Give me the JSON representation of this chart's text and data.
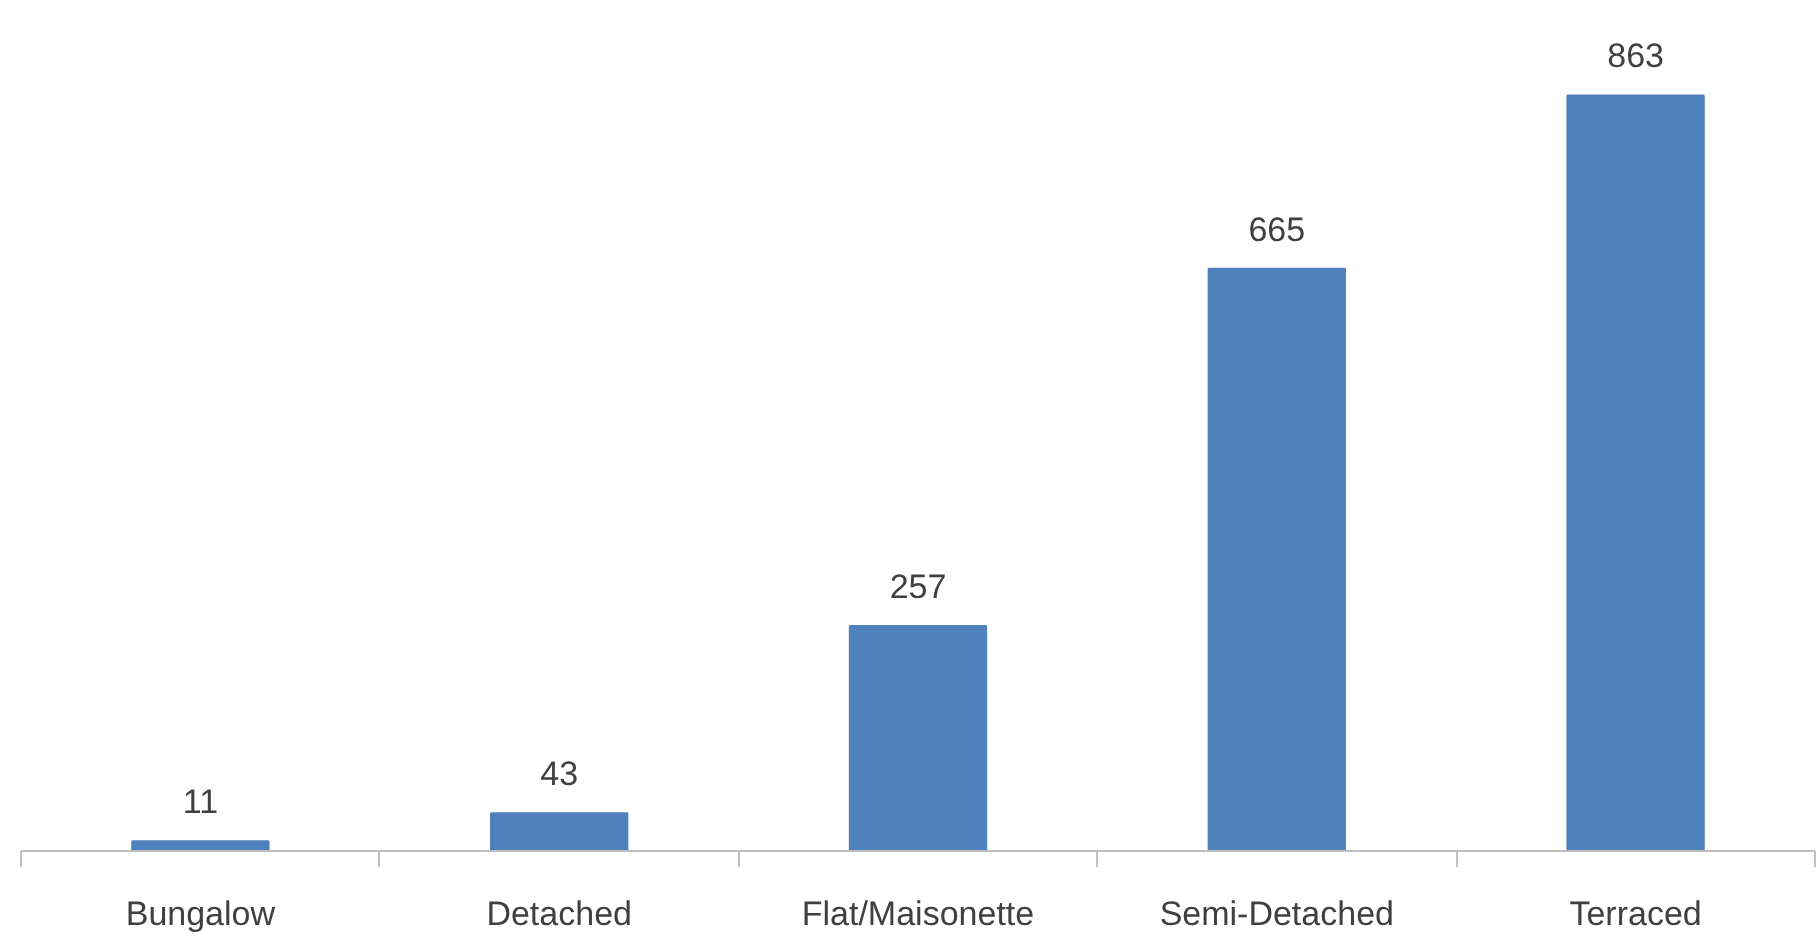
{
  "chart_data": {
    "type": "bar",
    "categories": [
      "Bungalow",
      "Detached",
      "Flat/Maisonette",
      "Semi-Detached",
      "Terraced"
    ],
    "values": [
      11,
      43,
      257,
      665,
      863
    ],
    "color": "#4f81bd",
    "data_labels": true
  }
}
